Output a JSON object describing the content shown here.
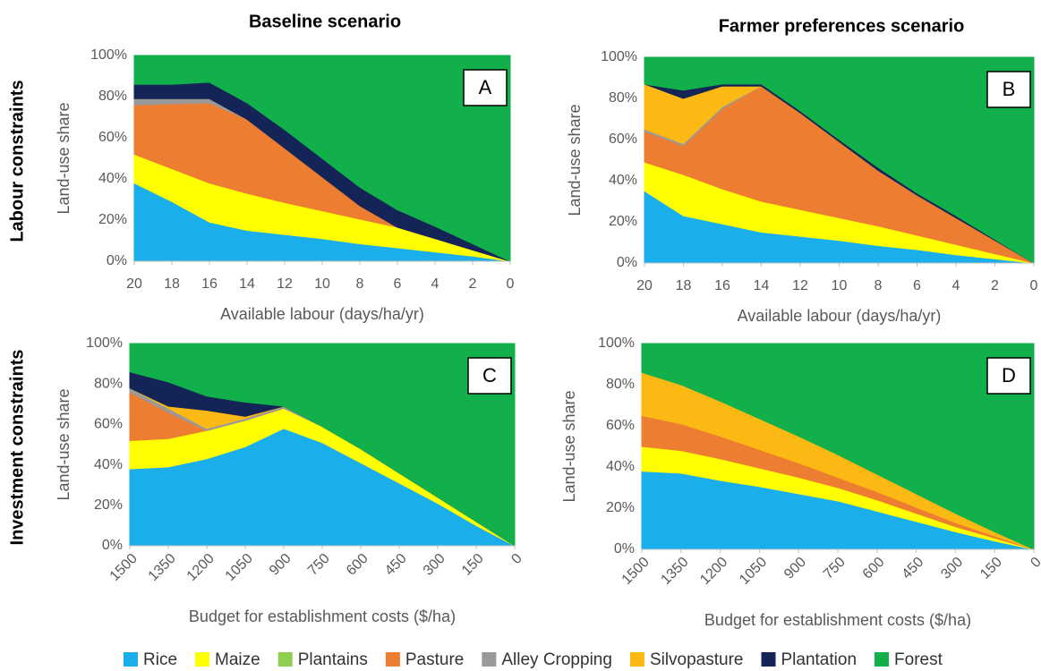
{
  "column_titles": [
    "Baseline scenario",
    "Farmer preferences scenario"
  ],
  "row_titles": [
    "Labour constraints",
    "Investment constraints"
  ],
  "chart_data": [
    {
      "type": "stacked_area",
      "panel_label": "A",
      "x_label": "Available labour (days/ha/yr)",
      "y_label": "Land-use share",
      "x": [
        20,
        18,
        16,
        14,
        12,
        10,
        8,
        6,
        4,
        2,
        0
      ],
      "xlim": [
        20,
        0
      ],
      "xticks": [
        20,
        18,
        16,
        14,
        12,
        10,
        8,
        6,
        4,
        2,
        0
      ],
      "ylim": [
        0,
        100
      ],
      "yticks": [
        {
          "value": 0,
          "label": "0%"
        },
        {
          "value": 20,
          "label": "20%"
        },
        {
          "value": 40,
          "label": "40%"
        },
        {
          "value": 60,
          "label": "60%"
        },
        {
          "value": 80,
          "label": "80%"
        },
        {
          "value": 100,
          "label": "100%"
        }
      ],
      "series": [
        {
          "name": "Rice",
          "color": "#1aaeea",
          "values": [
            38,
            29,
            19,
            15,
            13,
            11,
            8.5,
            6.5,
            4.5,
            2.5,
            0
          ]
        },
        {
          "name": "Maize",
          "color": "#ffff00",
          "values": [
            14,
            16,
            19,
            18,
            15.5,
            13.5,
            12,
            10,
            6.5,
            3,
            0
          ]
        },
        {
          "name": "Plantains",
          "color": "#8fcf4f",
          "values": [
            0,
            0,
            0,
            0,
            0,
            0,
            0,
            0,
            0,
            0,
            0
          ]
        },
        {
          "name": "Pasture",
          "color": "#ed7d31",
          "values": [
            24,
            31.5,
            39,
            36,
            26.5,
            16.5,
            6.5,
            0,
            0,
            0,
            0
          ]
        },
        {
          "name": "Alley Cropping",
          "color": "#9a9a9a",
          "values": [
            3,
            2.5,
            2,
            0,
            0,
            0,
            0,
            0,
            0,
            0,
            0
          ]
        },
        {
          "name": "Silvopasture",
          "color": "#fdb913",
          "values": [
            0,
            0,
            0,
            0,
            0,
            0,
            0,
            0,
            0,
            0,
            0
          ]
        },
        {
          "name": "Plantation",
          "color": "#142456",
          "values": [
            7,
            7,
            8,
            8,
            9,
            9,
            9,
            8.5,
            6,
            3,
            0
          ]
        },
        {
          "name": "Forest",
          "color": "#12b04b",
          "values": [
            14,
            14,
            13,
            23,
            36,
            50,
            64,
            75,
            83,
            91.5,
            100
          ]
        }
      ]
    },
    {
      "type": "stacked_area",
      "panel_label": "B",
      "x_label": "Available labour (days/ha/yr)",
      "y_label": "Land-use share",
      "x": [
        20,
        18,
        16,
        14,
        12,
        10,
        8,
        6,
        4,
        2,
        0
      ],
      "xlim": [
        20,
        0
      ],
      "xticks": [
        20,
        18,
        16,
        14,
        12,
        10,
        8,
        6,
        4,
        2,
        0
      ],
      "ylim": [
        0,
        100
      ],
      "yticks": [
        {
          "value": 0,
          "label": "0%"
        },
        {
          "value": 20,
          "label": "20%"
        },
        {
          "value": 40,
          "label": "40%"
        },
        {
          "value": 60,
          "label": "60%"
        },
        {
          "value": 80,
          "label": "80%"
        },
        {
          "value": 100,
          "label": "100%"
        }
      ],
      "series": [
        {
          "name": "Rice",
          "color": "#1aaeea",
          "values": [
            35,
            23,
            19,
            15,
            13,
            11,
            8.5,
            6.5,
            4,
            2,
            0
          ]
        },
        {
          "name": "Maize",
          "color": "#ffff00",
          "values": [
            14,
            20,
            17,
            15,
            13,
            11,
            9.5,
            7,
            5,
            2.5,
            0
          ]
        },
        {
          "name": "Plantains",
          "color": "#8fcf4f",
          "values": [
            0,
            0,
            0,
            0,
            0,
            0,
            0,
            0,
            0,
            0,
            0
          ]
        },
        {
          "name": "Pasture",
          "color": "#ed7d31",
          "values": [
            15,
            14,
            39,
            56,
            47,
            37,
            27,
            19.5,
            13,
            6.5,
            0
          ]
        },
        {
          "name": "Alley Cropping",
          "color": "#9a9a9a",
          "values": [
            1,
            1,
            1,
            0,
            0,
            0,
            0,
            0,
            0,
            0,
            0
          ]
        },
        {
          "name": "Silvopasture",
          "color": "#fdb913",
          "values": [
            22,
            22,
            10,
            0,
            0,
            0,
            0,
            0,
            0,
            0,
            0
          ]
        },
        {
          "name": "Plantation",
          "color": "#142456",
          "values": [
            0,
            4,
            1,
            1,
            1,
            1,
            1.5,
            1,
            1,
            0.5,
            0
          ]
        },
        {
          "name": "Forest",
          "color": "#12b04b",
          "values": [
            13,
            16,
            13,
            13,
            26,
            40,
            53.5,
            66,
            77,
            88.5,
            100
          ]
        }
      ]
    },
    {
      "type": "stacked_area",
      "panel_label": "C",
      "x_label": "Budget for establishment costs ($/ha)",
      "y_label": "Land-use share",
      "x": [
        1500,
        1350,
        1200,
        1050,
        900,
        750,
        600,
        450,
        300,
        150,
        0
      ],
      "xlim": [
        1500,
        0
      ],
      "xticks": [
        1500,
        1350,
        1200,
        1050,
        900,
        750,
        600,
        450,
        300,
        150,
        0
      ],
      "ylim": [
        0,
        100
      ],
      "yticks": [
        {
          "value": 0,
          "label": "0%"
        },
        {
          "value": 20,
          "label": "20%"
        },
        {
          "value": 40,
          "label": "40%"
        },
        {
          "value": 60,
          "label": "60%"
        },
        {
          "value": 80,
          "label": "80%"
        },
        {
          "value": 100,
          "label": "100%"
        }
      ],
      "series": [
        {
          "name": "Rice",
          "color": "#1aaeea",
          "values": [
            38,
            39,
            43,
            49,
            58,
            51,
            41,
            31,
            21,
            10,
            0
          ]
        },
        {
          "name": "Maize",
          "color": "#ffff00",
          "values": [
            14,
            14,
            14,
            13,
            10,
            8,
            7,
            5,
            3,
            2,
            0
          ]
        },
        {
          "name": "Plantains",
          "color": "#8fcf4f",
          "values": [
            0,
            0,
            0,
            0,
            0,
            0,
            0,
            0,
            0,
            0,
            0
          ]
        },
        {
          "name": "Pasture",
          "color": "#ed7d31",
          "values": [
            24,
            13,
            0,
            0,
            0,
            0,
            0,
            0,
            0,
            0,
            0
          ]
        },
        {
          "name": "Alley Cropping",
          "color": "#9a9a9a",
          "values": [
            2,
            2,
            1,
            1,
            1,
            0,
            0,
            0,
            0,
            0,
            0
          ]
        },
        {
          "name": "Silvopasture",
          "color": "#fdb913",
          "values": [
            0,
            1,
            9,
            1,
            0,
            0,
            0,
            0,
            0,
            0,
            0
          ]
        },
        {
          "name": "Plantation",
          "color": "#142456",
          "values": [
            8,
            12,
            7,
            7,
            0,
            0,
            0,
            0,
            0,
            0,
            0
          ]
        },
        {
          "name": "Forest",
          "color": "#12b04b",
          "values": [
            14,
            19,
            26,
            29,
            31,
            41,
            52,
            64,
            76,
            88,
            100
          ]
        }
      ]
    },
    {
      "type": "stacked_area",
      "panel_label": "D",
      "x_label": "Budget for establishment costs ($/ha)",
      "y_label": "Land-use share",
      "x": [
        1500,
        1350,
        1200,
        1050,
        900,
        750,
        600,
        450,
        300,
        150,
        0
      ],
      "xlim": [
        1500,
        0
      ],
      "xticks": [
        1500,
        1350,
        1200,
        1050,
        900,
        750,
        600,
        450,
        300,
        150,
        0
      ],
      "ylim": [
        0,
        100
      ],
      "yticks": [
        {
          "value": 0,
          "label": "0%"
        },
        {
          "value": 20,
          "label": "20%"
        },
        {
          "value": 40,
          "label": "40%"
        },
        {
          "value": 60,
          "label": "60%"
        },
        {
          "value": 80,
          "label": "80%"
        },
        {
          "value": 100,
          "label": "100%"
        }
      ],
      "series": [
        {
          "name": "Rice",
          "color": "#1aaeea",
          "values": [
            38,
            37,
            33.5,
            30.5,
            27,
            23.5,
            18.5,
            13.5,
            8.5,
            4,
            0
          ]
        },
        {
          "name": "Maize",
          "color": "#ffff00",
          "values": [
            12,
            11,
            10.5,
            9,
            8,
            6.5,
            5.5,
            4,
            2.5,
            1.5,
            0
          ]
        },
        {
          "name": "Plantains",
          "color": "#8fcf4f",
          "values": [
            0,
            0,
            0,
            0,
            0,
            0,
            0,
            0,
            0,
            0,
            0
          ]
        },
        {
          "name": "Pasture",
          "color": "#ed7d31",
          "values": [
            15,
            13,
            11,
            9,
            7,
            5,
            4,
            3,
            2,
            1,
            0
          ]
        },
        {
          "name": "Alley Cropping",
          "color": "#9a9a9a",
          "values": [
            0,
            0,
            0,
            0,
            0,
            0,
            0,
            0,
            0,
            0,
            0
          ]
        },
        {
          "name": "Silvopasture",
          "color": "#fdb913",
          "values": [
            21,
            19,
            17,
            15,
            13,
            11,
            8.5,
            6.5,
            4.5,
            2,
            0
          ]
        },
        {
          "name": "Plantation",
          "color": "#142456",
          "values": [
            0,
            0,
            0,
            0,
            0,
            0,
            0,
            0,
            0,
            0,
            0
          ]
        },
        {
          "name": "Forest",
          "color": "#12b04b",
          "values": [
            14,
            20,
            28,
            36.5,
            45,
            54,
            63.5,
            73,
            82.5,
            91.5,
            100
          ]
        }
      ]
    }
  ]
}
